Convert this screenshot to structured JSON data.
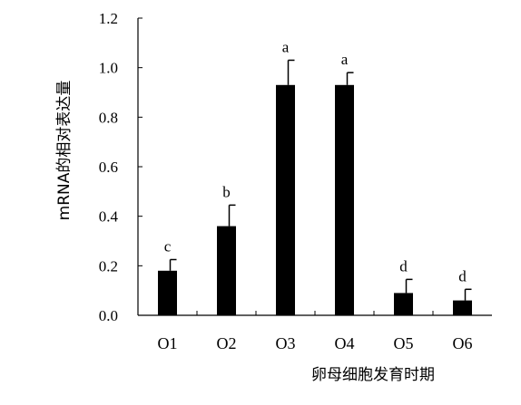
{
  "chart_data": {
    "type": "bar",
    "categories": [
      "O1",
      "O2",
      "O3",
      "O4",
      "O5",
      "O6"
    ],
    "series": [
      {
        "values": [
          0.18,
          0.36,
          0.93,
          0.93,
          0.09,
          0.06
        ],
        "errors": [
          0.045,
          0.085,
          0.1,
          0.05,
          0.055,
          0.045
        ],
        "significance": [
          "c",
          "b",
          "a",
          "a",
          "d",
          "d"
        ],
        "color": "#000000"
      }
    ],
    "title": "",
    "xlabel": "卵母细胞发育时期",
    "ylabel": "mRNA的相对表达量",
    "ylim": [
      0,
      1.2
    ],
    "yticks": [
      "0.0",
      "0.2",
      "0.4",
      "0.6",
      "0.8",
      "1.0",
      "1.2"
    ],
    "grid": false,
    "legend": "none"
  }
}
